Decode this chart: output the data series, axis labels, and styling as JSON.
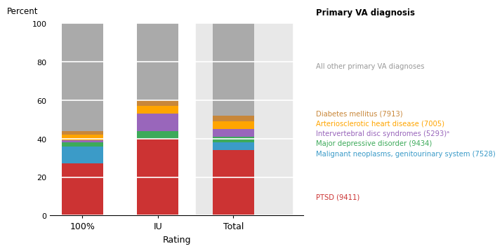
{
  "categories": [
    "100%",
    "IU",
    "Total"
  ],
  "series": [
    {
      "label": "PTSD (9411)",
      "color": "#CC3333",
      "values": [
        27,
        40,
        34
      ]
    },
    {
      "label": "Malignant neoplasms, genitourinary system (7528)",
      "color": "#3B9BC8",
      "values": [
        9,
        0,
        4
      ]
    },
    {
      "label": "Major depressive disorder (9434)",
      "color": "#3DAA5A",
      "values": [
        2,
        4,
        3
      ]
    },
    {
      "label": "Intervertebral disc syndromes (5293)ᵃ",
      "color": "#9966BB",
      "values": [
        1,
        9,
        4
      ]
    },
    {
      "label": "Arteriosclerotic heart disease (7005)",
      "color": "#FFA500",
      "values": [
        3,
        4,
        4
      ]
    },
    {
      "label": "Diabetes mellitus (7913)",
      "color": "#C8873A",
      "values": [
        2,
        3,
        3
      ]
    },
    {
      "label": "All other primary VA diagnoses",
      "color": "#AAAAAA",
      "values": [
        56,
        40,
        48
      ]
    }
  ],
  "legend_items": [
    {
      "label": "All other primary VA diagnoses",
      "color": "#999999"
    },
    {
      "label": "Diabetes mellitus (7913)",
      "color": "#C8873A"
    },
    {
      "label": "Arteriosclerotic heart disease (7005)",
      "color": "#FFA500"
    },
    {
      "label": "Intervertebral disc syndromes (5293)ᵃ",
      "color": "#9966BB"
    },
    {
      "label": "Major depressive disorder (9434)",
      "color": "#3DAA5A"
    },
    {
      "label": "Malignant neoplasms, genitourinary system (7528)",
      "color": "#3B9BC8"
    },
    {
      "label": "PTSD (9411)",
      "color": "#CC3333"
    }
  ],
  "title": "Primary VA diagnosis",
  "percent_label": "Percent",
  "xlabel": "Rating",
  "ylim": [
    0,
    100
  ],
  "yticks": [
    0,
    20,
    40,
    60,
    80,
    100
  ],
  "bar_width": 0.55,
  "total_bg_color": "#E8E8E8",
  "figsize": [
    6.94,
    3.61
  ],
  "dpi": 100
}
